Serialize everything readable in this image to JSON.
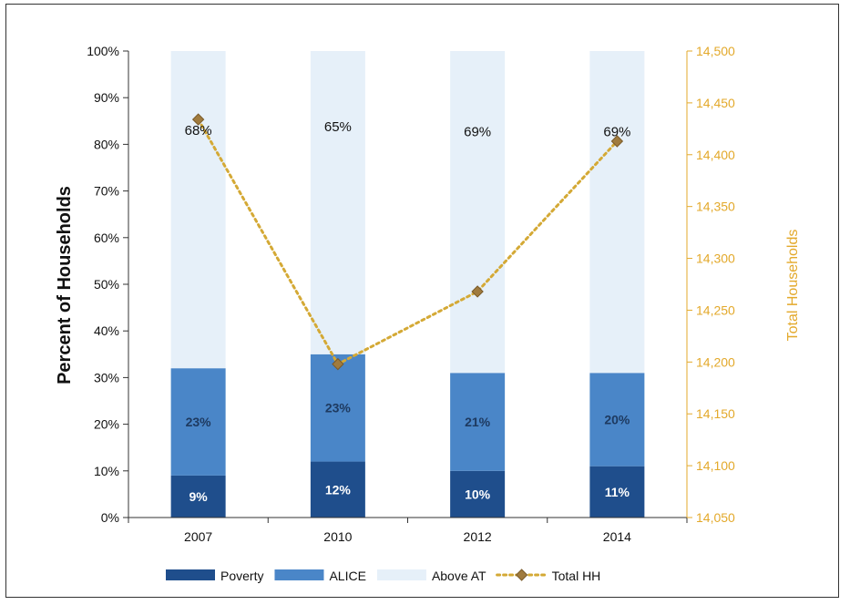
{
  "chart_data": {
    "type": "bar",
    "stacked": true,
    "categories": [
      "2007",
      "2010",
      "2012",
      "2014"
    ],
    "ylabel": "Percent of Households",
    "y2label": "Total Households",
    "ylim": [
      0,
      100
    ],
    "y2lim": [
      14050,
      14500
    ],
    "y_ticks": [
      "0%",
      "10%",
      "20%",
      "30%",
      "40%",
      "50%",
      "60%",
      "70%",
      "80%",
      "90%",
      "100%"
    ],
    "y2_ticks": [
      "14,050",
      "14,100",
      "14,150",
      "14,200",
      "14,250",
      "14,300",
      "14,350",
      "14,400",
      "14,450",
      "14,500"
    ],
    "series": [
      {
        "name": "Poverty",
        "type": "bar",
        "color": "#1F4E8C",
        "values": [
          9,
          12,
          10,
          11
        ],
        "labels": [
          "9%",
          "12%",
          "10%",
          "11%"
        ]
      },
      {
        "name": "ALICE",
        "type": "bar",
        "color": "#4A86C8",
        "values": [
          23,
          23,
          21,
          20
        ],
        "labels": [
          "23%",
          "23%",
          "21%",
          "20%"
        ]
      },
      {
        "name": "Above AT",
        "type": "bar",
        "color": "#E6F0F9",
        "values": [
          68,
          65,
          69,
          69
        ],
        "labels": [
          "68%",
          "65%",
          "69%",
          "69%"
        ]
      },
      {
        "name": "Total HH",
        "type": "line",
        "axis": "right",
        "color": "#D4A935",
        "marker_color": "#A07B3E",
        "values": [
          14434,
          14198,
          14268,
          14413
        ]
      }
    ],
    "legend": {
      "position": "bottom",
      "items": [
        "Poverty",
        "ALICE",
        "Above AT",
        "Total HH"
      ]
    },
    "grid": false
  }
}
